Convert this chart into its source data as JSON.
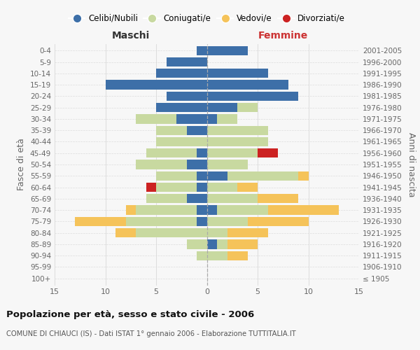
{
  "age_groups": [
    "100+",
    "95-99",
    "90-94",
    "85-89",
    "80-84",
    "75-79",
    "70-74",
    "65-69",
    "60-64",
    "55-59",
    "50-54",
    "45-49",
    "40-44",
    "35-39",
    "30-34",
    "25-29",
    "20-24",
    "15-19",
    "10-14",
    "5-9",
    "0-4"
  ],
  "birth_years": [
    "≤ 1905",
    "1906-1910",
    "1911-1915",
    "1916-1920",
    "1921-1925",
    "1926-1930",
    "1931-1935",
    "1936-1940",
    "1941-1945",
    "1946-1950",
    "1951-1955",
    "1956-1960",
    "1961-1965",
    "1966-1970",
    "1971-1975",
    "1976-1980",
    "1981-1985",
    "1986-1990",
    "1991-1995",
    "1996-2000",
    "2001-2005"
  ],
  "male_celibi": [
    0,
    0,
    0,
    0,
    0,
    1,
    1,
    2,
    1,
    1,
    2,
    1,
    0,
    2,
    3,
    5,
    4,
    10,
    5,
    4,
    1
  ],
  "male_coniugati": [
    0,
    0,
    1,
    2,
    7,
    7,
    6,
    4,
    4,
    4,
    5,
    5,
    5,
    3,
    4,
    0,
    0,
    0,
    0,
    0,
    0
  ],
  "male_vedovi": [
    0,
    0,
    0,
    0,
    2,
    5,
    1,
    0,
    0,
    0,
    0,
    0,
    0,
    0,
    0,
    0,
    0,
    0,
    0,
    0,
    0
  ],
  "male_divorziati": [
    0,
    0,
    0,
    0,
    0,
    0,
    0,
    0,
    1,
    0,
    0,
    0,
    0,
    0,
    0,
    0,
    0,
    0,
    0,
    0,
    0
  ],
  "female_nubili": [
    0,
    0,
    0,
    1,
    0,
    0,
    1,
    0,
    0,
    2,
    0,
    0,
    0,
    0,
    1,
    3,
    9,
    8,
    6,
    0,
    4
  ],
  "female_coniugate": [
    0,
    0,
    2,
    1,
    2,
    4,
    5,
    5,
    3,
    7,
    4,
    5,
    6,
    6,
    2,
    2,
    0,
    0,
    0,
    0,
    0
  ],
  "female_vedove": [
    0,
    0,
    2,
    3,
    4,
    6,
    7,
    4,
    2,
    1,
    0,
    0,
    0,
    0,
    0,
    0,
    0,
    0,
    0,
    0,
    0
  ],
  "female_divorziate": [
    0,
    0,
    0,
    0,
    0,
    0,
    0,
    0,
    0,
    0,
    0,
    2,
    0,
    0,
    0,
    0,
    0,
    0,
    0,
    0,
    0
  ],
  "color_celibi": "#3d6fa8",
  "color_coniugati": "#c8d9a0",
  "color_vedovi": "#f5c35a",
  "color_divorziati": "#cc2222",
  "title": "Popolazione per età, sesso e stato civile - 2006",
  "subtitle": "COMUNE DI CHIAUCI (IS) - Dati ISTAT 1° gennaio 2006 - Elaborazione TUTTITALIA.IT",
  "label_maschi": "Maschi",
  "label_femmine": "Femmine",
  "ylabel_left": "Fasce di età",
  "ylabel_right": "Anni di nascita",
  "legend_labels": [
    "Celibi/Nubili",
    "Coniugati/e",
    "Vedovi/e",
    "Divorziati/e"
  ],
  "xlim": 15,
  "bg_color": "#f7f7f7",
  "grid_color": "#dddddd"
}
